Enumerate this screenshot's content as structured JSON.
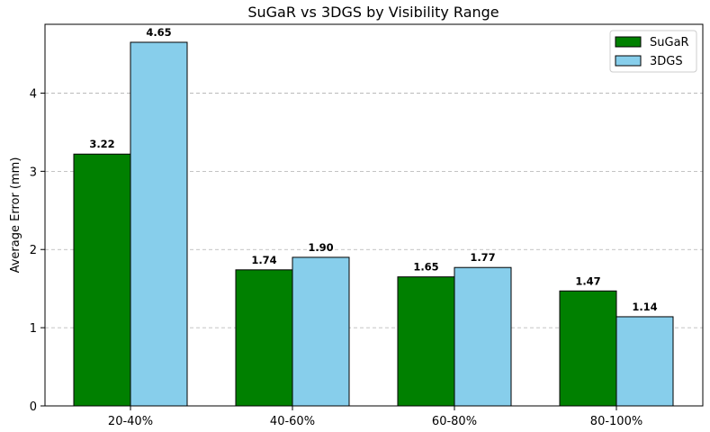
{
  "chart_data": {
    "type": "bar",
    "title": "SuGaR vs 3DGS by Visibility Range",
    "xlabel": "",
    "ylabel": "Average Error (mm)",
    "categories": [
      "20-40%",
      "40-60%",
      "60-80%",
      "80-100%"
    ],
    "series": [
      {
        "name": "SuGaR",
        "values": [
          3.22,
          1.74,
          1.65,
          1.47
        ],
        "color": "#008000",
        "labels": [
          "3.22",
          "1.74",
          "1.65",
          "1.47"
        ]
      },
      {
        "name": "3DGS",
        "values": [
          4.65,
          1.9,
          1.77,
          1.14
        ],
        "color": "#87ceeb",
        "labels": [
          "4.65",
          "1.90",
          "1.77",
          "1.14"
        ]
      }
    ],
    "ylim": [
      0,
      4.88
    ],
    "yticks": [
      0,
      1,
      2,
      3,
      4
    ],
    "ytick_labels": [
      "0",
      "1",
      "2",
      "3",
      "4"
    ],
    "grid": "y-dashed",
    "legend_position": "top-right"
  }
}
